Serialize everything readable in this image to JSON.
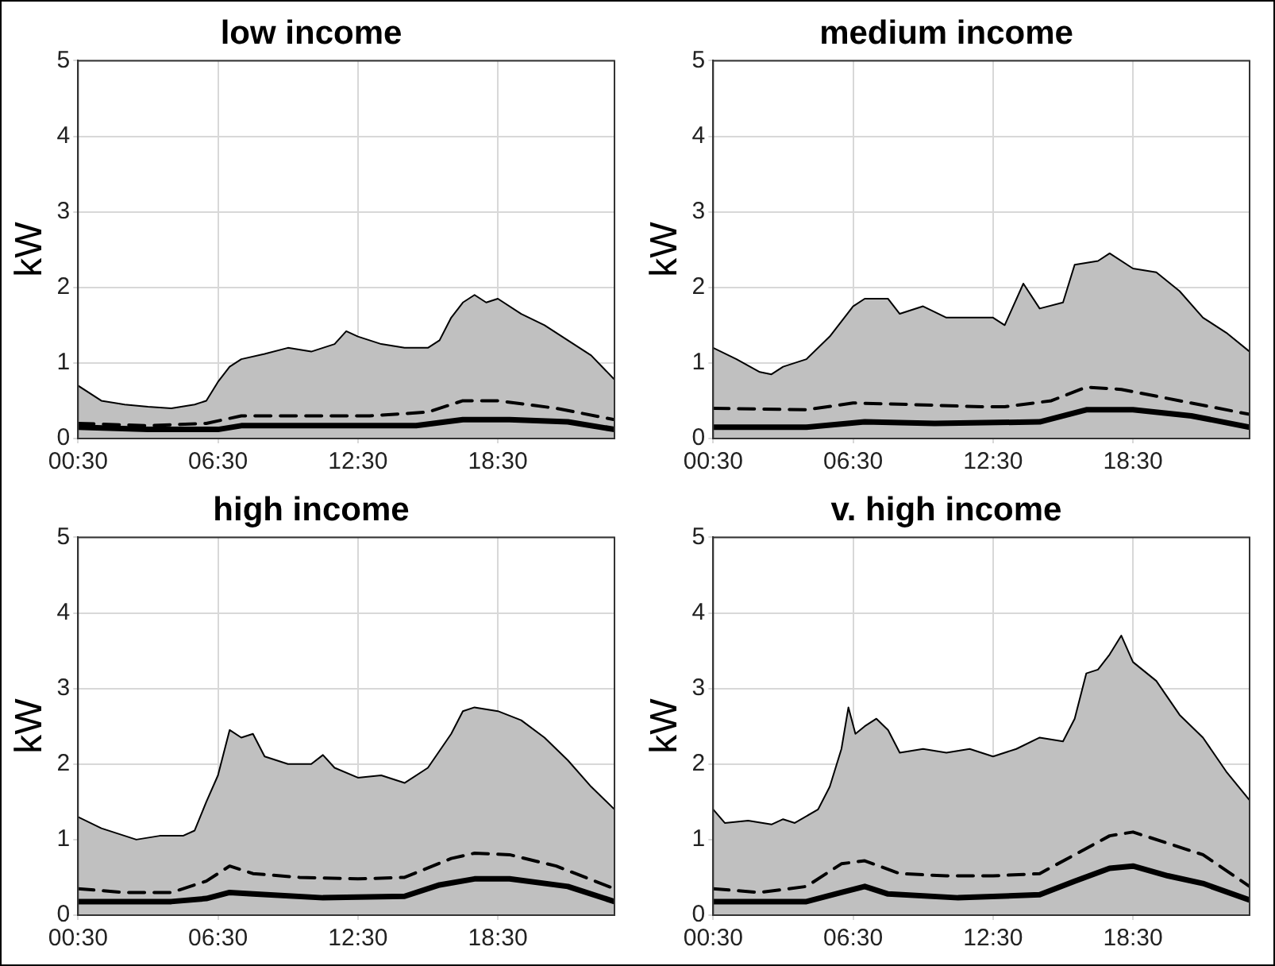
{
  "chart_data": [
    {
      "type": "line",
      "title": "low income",
      "ylabel": "kW",
      "xlim": [
        0.5,
        23.5
      ],
      "ylim": [
        0,
        5
      ],
      "yticks": [
        0,
        1,
        2,
        3,
        4,
        5
      ],
      "xticks": [
        {
          "value": 0.5,
          "label": "00:30"
        },
        {
          "value": 6.5,
          "label": "06:30"
        },
        {
          "value": 12.5,
          "label": "12:30"
        },
        {
          "value": 18.5,
          "label": "18:30"
        }
      ],
      "grid": true,
      "legend": false,
      "marker": "none",
      "series": [
        {
          "type": "area",
          "color": "#c0c0c0",
          "x": [
            0.5,
            1.5,
            2.5,
            3.5,
            4.5,
            5.5,
            6,
            6.5,
            7,
            7.5,
            8.5,
            9.5,
            10.5,
            11.5,
            12,
            12.5,
            13.5,
            14.5,
            15.5,
            16,
            16.5,
            17,
            17.5,
            18,
            18.5,
            19.5,
            20.5,
            21.5,
            22.5,
            23.5
          ],
          "values": [
            0.7,
            0.5,
            0.45,
            0.42,
            0.4,
            0.45,
            0.5,
            0.75,
            0.95,
            1.05,
            1.12,
            1.2,
            1.15,
            1.25,
            1.42,
            1.35,
            1.25,
            1.2,
            1.2,
            1.3,
            1.6,
            1.8,
            1.9,
            1.8,
            1.85,
            1.65,
            1.5,
            1.3,
            1.1,
            0.78
          ]
        },
        {
          "type": "line",
          "color": "#000000",
          "line_style": "dashed",
          "x": [
            0.5,
            3.5,
            6,
            7.5,
            10,
            13,
            15.5,
            17,
            18.5,
            21,
            23.5
          ],
          "values": [
            0.2,
            0.17,
            0.2,
            0.3,
            0.3,
            0.3,
            0.35,
            0.5,
            0.5,
            0.4,
            0.25
          ]
        },
        {
          "type": "line",
          "color": "#000000",
          "line_style": "solid",
          "x": [
            0.5,
            3.5,
            6.5,
            7.5,
            15,
            17,
            19,
            21.5,
            23.5
          ],
          "values": [
            0.15,
            0.12,
            0.12,
            0.17,
            0.17,
            0.25,
            0.25,
            0.22,
            0.12
          ]
        }
      ]
    },
    {
      "type": "line",
      "title": "medium income",
      "ylabel": "kW",
      "xlim": [
        0.5,
        23.5
      ],
      "ylim": [
        0,
        5
      ],
      "yticks": [
        0,
        1,
        2,
        3,
        4,
        5
      ],
      "xticks": [
        {
          "value": 0.5,
          "label": "00:30"
        },
        {
          "value": 6.5,
          "label": "06:30"
        },
        {
          "value": 12.5,
          "label": "12:30"
        },
        {
          "value": 18.5,
          "label": "18:30"
        }
      ],
      "grid": true,
      "legend": false,
      "marker": "none",
      "series": [
        {
          "type": "area",
          "color": "#c0c0c0",
          "x": [
            0.5,
            1.5,
            2.5,
            3,
            3.5,
            4.5,
            5.5,
            6.5,
            7,
            8,
            8.5,
            9.5,
            10.5,
            11.5,
            12.5,
            13,
            13.8,
            14.5,
            15.5,
            16,
            17,
            17.5,
            18.5,
            19.5,
            20.5,
            21.5,
            22.5,
            23.5
          ],
          "values": [
            1.2,
            1.05,
            0.88,
            0.85,
            0.95,
            1.05,
            1.35,
            1.75,
            1.85,
            1.85,
            1.65,
            1.75,
            1.6,
            1.6,
            1.6,
            1.5,
            2.05,
            1.72,
            1.8,
            2.3,
            2.35,
            2.45,
            2.25,
            2.2,
            1.95,
            1.6,
            1.4,
            1.15
          ]
        },
        {
          "type": "line",
          "color": "#000000",
          "line_style": "dashed",
          "x": [
            0.5,
            4.5,
            6.5,
            9,
            12,
            13,
            15,
            16.5,
            18,
            20.5,
            23.5
          ],
          "values": [
            0.4,
            0.38,
            0.47,
            0.45,
            0.42,
            0.42,
            0.5,
            0.68,
            0.65,
            0.5,
            0.32
          ]
        },
        {
          "type": "line",
          "color": "#000000",
          "line_style": "solid",
          "x": [
            0.5,
            4.5,
            7,
            10,
            14.5,
            16.5,
            18.5,
            21,
            23.5
          ],
          "values": [
            0.15,
            0.15,
            0.22,
            0.2,
            0.22,
            0.38,
            0.38,
            0.3,
            0.15
          ]
        }
      ]
    },
    {
      "type": "line",
      "title": "high income",
      "ylabel": "kW",
      "xlim": [
        0.5,
        23.5
      ],
      "ylim": [
        0,
        5
      ],
      "yticks": [
        0,
        1,
        2,
        3,
        4,
        5
      ],
      "xticks": [
        {
          "value": 0.5,
          "label": "00:30"
        },
        {
          "value": 6.5,
          "label": "06:30"
        },
        {
          "value": 12.5,
          "label": "12:30"
        },
        {
          "value": 18.5,
          "label": "18:30"
        }
      ],
      "grid": true,
      "legend": false,
      "marker": "none",
      "series": [
        {
          "type": "area",
          "color": "#c0c0c0",
          "x": [
            0.5,
            1.5,
            2.5,
            3,
            4,
            5,
            5.5,
            6,
            6.5,
            7,
            7.5,
            8,
            8.5,
            9.5,
            10.5,
            11,
            11.5,
            12.5,
            13.5,
            14.5,
            15.5,
            16.5,
            17,
            17.5,
            18.5,
            19.5,
            20.5,
            21.5,
            22.5,
            23.5
          ],
          "values": [
            1.3,
            1.15,
            1.05,
            1.0,
            1.05,
            1.05,
            1.12,
            1.5,
            1.85,
            2.45,
            2.35,
            2.4,
            2.1,
            2.0,
            2.0,
            2.12,
            1.95,
            1.82,
            1.85,
            1.75,
            1.95,
            2.4,
            2.7,
            2.75,
            2.7,
            2.58,
            2.35,
            2.05,
            1.7,
            1.4
          ]
        },
        {
          "type": "line",
          "color": "#000000",
          "line_style": "dashed",
          "x": [
            0.5,
            2.5,
            4.5,
            6,
            7,
            8,
            10,
            12.5,
            14.5,
            16.5,
            17.5,
            19,
            21,
            23.5
          ],
          "values": [
            0.35,
            0.3,
            0.3,
            0.45,
            0.65,
            0.55,
            0.5,
            0.48,
            0.5,
            0.75,
            0.82,
            0.8,
            0.65,
            0.35
          ]
        },
        {
          "type": "line",
          "color": "#000000",
          "line_style": "solid",
          "x": [
            0.5,
            4.5,
            6,
            7,
            8,
            11,
            14.5,
            16,
            17.5,
            19,
            21.5,
            23.5
          ],
          "values": [
            0.18,
            0.18,
            0.22,
            0.3,
            0.28,
            0.23,
            0.25,
            0.4,
            0.48,
            0.48,
            0.38,
            0.18
          ]
        }
      ]
    },
    {
      "type": "line",
      "title": "v. high income",
      "ylabel": "kW",
      "xlim": [
        0.5,
        23.5
      ],
      "ylim": [
        0,
        5
      ],
      "yticks": [
        0,
        1,
        2,
        3,
        4,
        5
      ],
      "xticks": [
        {
          "value": 0.5,
          "label": "00:30"
        },
        {
          "value": 6.5,
          "label": "06:30"
        },
        {
          "value": 12.5,
          "label": "12:30"
        },
        {
          "value": 18.5,
          "label": "18:30"
        }
      ],
      "grid": true,
      "legend": false,
      "marker": "none",
      "series": [
        {
          "type": "area",
          "color": "#c0c0c0",
          "x": [
            0.5,
            1,
            2,
            3,
            3.5,
            4,
            5,
            5.5,
            6,
            6.3,
            6.6,
            7,
            7.5,
            8,
            8.5,
            9.5,
            10.5,
            11.5,
            12.5,
            13.5,
            14.5,
            15.5,
            16,
            16.5,
            17,
            17.5,
            18,
            18.5,
            19.5,
            20.5,
            21.5,
            22.5,
            23.5
          ],
          "values": [
            1.4,
            1.22,
            1.25,
            1.2,
            1.27,
            1.22,
            1.4,
            1.7,
            2.2,
            2.75,
            2.4,
            2.5,
            2.6,
            2.45,
            2.15,
            2.2,
            2.15,
            2.2,
            2.1,
            2.2,
            2.35,
            2.3,
            2.6,
            3.2,
            3.25,
            3.45,
            3.7,
            3.35,
            3.1,
            2.65,
            2.35,
            1.9,
            1.52
          ]
        },
        {
          "type": "line",
          "color": "#000000",
          "line_style": "dashed",
          "x": [
            0.5,
            2.5,
            4.5,
            6,
            7,
            8.5,
            10.5,
            12.5,
            14.5,
            16,
            17.5,
            18.5,
            20,
            21.5,
            23.5
          ],
          "values": [
            0.35,
            0.3,
            0.38,
            0.68,
            0.72,
            0.55,
            0.52,
            0.52,
            0.55,
            0.8,
            1.05,
            1.1,
            0.95,
            0.8,
            0.38
          ]
        },
        {
          "type": "line",
          "color": "#000000",
          "line_style": "solid",
          "x": [
            0.5,
            4.5,
            6,
            7,
            8,
            11,
            14.5,
            16,
            17.5,
            18.5,
            20,
            21.5,
            23.5
          ],
          "values": [
            0.18,
            0.18,
            0.3,
            0.38,
            0.28,
            0.23,
            0.27,
            0.45,
            0.62,
            0.65,
            0.52,
            0.42,
            0.2
          ]
        }
      ]
    }
  ]
}
